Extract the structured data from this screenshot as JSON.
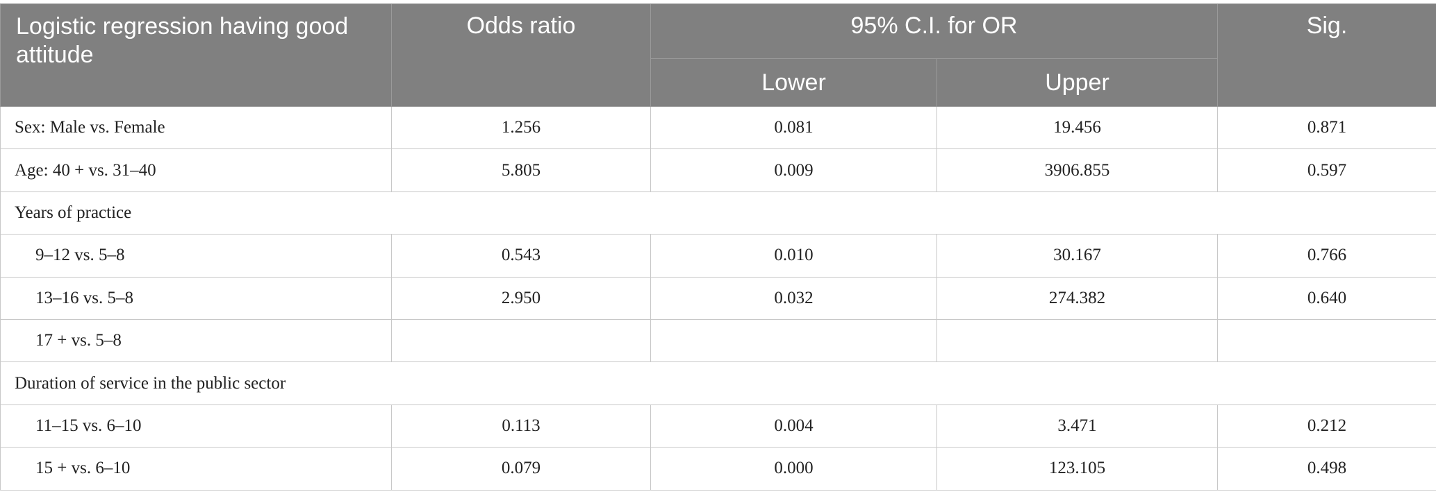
{
  "table": {
    "header": {
      "label": "Logistic regression having good attitude",
      "odds": "Odds ratio",
      "ci": "95% C.I. for OR",
      "lower": "Lower",
      "upper": "Upper",
      "sig": "Sig."
    },
    "body": [
      {
        "label": "Sex: Male vs. Female",
        "values": [
          "1.256",
          "0.081",
          "19.456",
          "0.871"
        ]
      },
      {
        "label": "Age: 40 + vs. 31–40",
        "values": [
          "5.805",
          "0.009",
          "3906.855",
          "0.597"
        ]
      },
      {
        "section": "Years of practice",
        "rows": [
          {
            "label": "9–12 vs. 5–8",
            "values": [
              "0.543",
              "0.010",
              "30.167",
              "0.766"
            ]
          },
          {
            "label": "13–16 vs. 5–8",
            "values": [
              "2.950",
              "0.032",
              "274.382",
              "0.640"
            ]
          },
          {
            "label": "17 + vs. 5–8",
            "values": []
          }
        ]
      },
      {
        "section": "Duration of service in the public sector",
        "rows": [
          {
            "label": "11–15 vs. 6–10",
            "values": [
              "0.113",
              "0.004",
              "3.471",
              "0.212"
            ]
          },
          {
            "label": "15 + vs. 6–10",
            "values": [
              "0.079",
              "0.000",
              "123.105",
              "0.498"
            ]
          }
        ]
      }
    ]
  }
}
